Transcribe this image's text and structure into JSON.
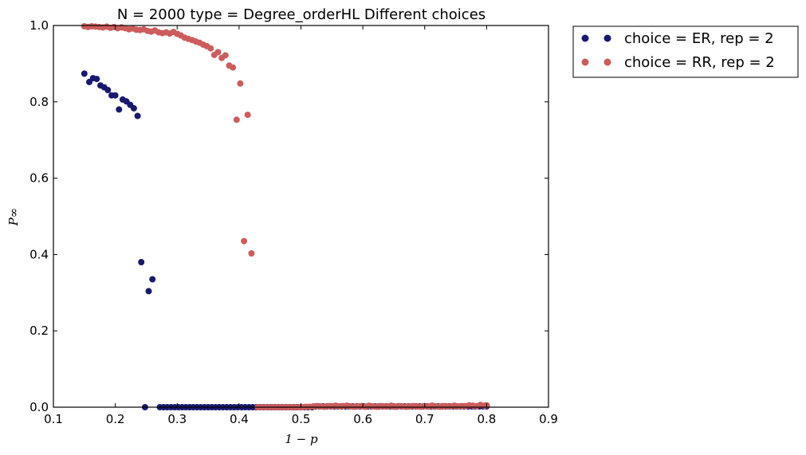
{
  "chart_data": {
    "type": "scatter",
    "title": "N = 2000 type = Degree_orderHL Different choices",
    "xlabel": "1 − p",
    "ylabel": "P∞",
    "xlim": [
      0.1,
      0.9
    ],
    "ylim": [
      0.0,
      1.0
    ],
    "xticks": [
      "0.1",
      "0.2",
      "0.3",
      "0.4",
      "0.5",
      "0.6",
      "0.7",
      "0.8",
      "0.9"
    ],
    "yticks": [
      "0.0",
      "0.2",
      "0.4",
      "0.6",
      "0.8",
      "1.0"
    ],
    "grid": false,
    "legend_position": "outside-top-right",
    "series": [
      {
        "name": "choice = ER, rep = 2",
        "color": "#191970",
        "points": [
          [
            0.15,
            0.874
          ],
          [
            0.158,
            0.852
          ],
          [
            0.164,
            0.862
          ],
          [
            0.17,
            0.86
          ],
          [
            0.176,
            0.843
          ],
          [
            0.182,
            0.838
          ],
          [
            0.188,
            0.831
          ],
          [
            0.194,
            0.817
          ],
          [
            0.2,
            0.817
          ],
          [
            0.206,
            0.78
          ],
          [
            0.212,
            0.806
          ],
          [
            0.218,
            0.801
          ],
          [
            0.224,
            0.792
          ],
          [
            0.23,
            0.783
          ],
          [
            0.236,
            0.763
          ],
          [
            0.242,
            0.38
          ],
          [
            0.248,
            0.0
          ],
          [
            0.254,
            0.304
          ],
          [
            0.26,
            0.335
          ],
          [
            0.272,
            0.0
          ],
          [
            0.278,
            0.0
          ],
          [
            0.284,
            0.0
          ],
          [
            0.29,
            0.0
          ],
          [
            0.296,
            0.0
          ],
          [
            0.302,
            0.0
          ],
          [
            0.308,
            0.0
          ],
          [
            0.314,
            0.0
          ],
          [
            0.32,
            0.0
          ],
          [
            0.326,
            0.0
          ],
          [
            0.332,
            0.0
          ],
          [
            0.338,
            0.0
          ],
          [
            0.344,
            0.0
          ],
          [
            0.35,
            0.0
          ],
          [
            0.356,
            0.0
          ],
          [
            0.362,
            0.0
          ],
          [
            0.368,
            0.0
          ],
          [
            0.374,
            0.0
          ],
          [
            0.38,
            0.0
          ],
          [
            0.386,
            0.0
          ],
          [
            0.392,
            0.0
          ],
          [
            0.398,
            0.0
          ],
          [
            0.404,
            0.0
          ],
          [
            0.41,
            0.0
          ],
          [
            0.416,
            0.0
          ],
          [
            0.422,
            0.0
          ],
          [
            0.428,
            0.0
          ],
          [
            0.434,
            0.0
          ],
          [
            0.44,
            0.0
          ],
          [
            0.446,
            0.0
          ],
          [
            0.452,
            0.0
          ],
          [
            0.458,
            0.0
          ],
          [
            0.464,
            0.0
          ],
          [
            0.47,
            0.0
          ],
          [
            0.476,
            0.0
          ],
          [
            0.482,
            0.0
          ],
          [
            0.488,
            0.0
          ],
          [
            0.494,
            0.0
          ],
          [
            0.5,
            0.0
          ],
          [
            0.506,
            0.0
          ],
          [
            0.512,
            0.0
          ],
          [
            0.518,
            0.0
          ],
          [
            0.524,
            0.002
          ],
          [
            0.53,
            0.002
          ],
          [
            0.536,
            0.002
          ],
          [
            0.542,
            0.002
          ],
          [
            0.548,
            0.002
          ],
          [
            0.554,
            0.002
          ],
          [
            0.56,
            0.002
          ],
          [
            0.566,
            0.002
          ],
          [
            0.572,
            0.002
          ],
          [
            0.578,
            0.002
          ],
          [
            0.584,
            0.002
          ],
          [
            0.59,
            0.002
          ],
          [
            0.596,
            0.002
          ],
          [
            0.602,
            0.002
          ],
          [
            0.608,
            0.002
          ],
          [
            0.614,
            0.002
          ],
          [
            0.62,
            0.002
          ],
          [
            0.626,
            0.002
          ],
          [
            0.632,
            0.002
          ],
          [
            0.638,
            0.002
          ],
          [
            0.644,
            0.002
          ],
          [
            0.65,
            0.002
          ],
          [
            0.656,
            0.002
          ],
          [
            0.662,
            0.002
          ],
          [
            0.668,
            0.002
          ],
          [
            0.674,
            0.002
          ],
          [
            0.68,
            0.002
          ],
          [
            0.686,
            0.002
          ],
          [
            0.692,
            0.002
          ],
          [
            0.698,
            0.002
          ],
          [
            0.704,
            0.002
          ],
          [
            0.71,
            0.002
          ],
          [
            0.716,
            0.002
          ],
          [
            0.722,
            0.002
          ],
          [
            0.728,
            0.002
          ],
          [
            0.734,
            0.002
          ],
          [
            0.74,
            0.002
          ],
          [
            0.746,
            0.002
          ],
          [
            0.752,
            0.002
          ],
          [
            0.758,
            0.002
          ],
          [
            0.764,
            0.002
          ],
          [
            0.77,
            0.002
          ],
          [
            0.776,
            0.002
          ],
          [
            0.782,
            0.002
          ],
          [
            0.788,
            0.002
          ],
          [
            0.794,
            0.002
          ],
          [
            0.8,
            0.002
          ]
        ]
      },
      {
        "name": "choice = RR, rep = 2",
        "color": "#cd5c5c",
        "points": [
          [
            0.15,
            0.998
          ],
          [
            0.156,
            0.996
          ],
          [
            0.162,
            0.998
          ],
          [
            0.168,
            0.997
          ],
          [
            0.174,
            0.996
          ],
          [
            0.18,
            0.995
          ],
          [
            0.186,
            0.997
          ],
          [
            0.192,
            0.994
          ],
          [
            0.198,
            0.996
          ],
          [
            0.204,
            0.993
          ],
          [
            0.21,
            0.995
          ],
          [
            0.216,
            0.993
          ],
          [
            0.222,
            0.99
          ],
          [
            0.228,
            0.992
          ],
          [
            0.234,
            0.989
          ],
          [
            0.24,
            0.988
          ],
          [
            0.246,
            0.99
          ],
          [
            0.252,
            0.986
          ],
          [
            0.258,
            0.984
          ],
          [
            0.264,
            0.987
          ],
          [
            0.27,
            0.982
          ],
          [
            0.276,
            0.98
          ],
          [
            0.282,
            0.982
          ],
          [
            0.288,
            0.979
          ],
          [
            0.294,
            0.983
          ],
          [
            0.3,
            0.978
          ],
          [
            0.306,
            0.974
          ],
          [
            0.312,
            0.968
          ],
          [
            0.318,
            0.965
          ],
          [
            0.324,
            0.962
          ],
          [
            0.33,
            0.958
          ],
          [
            0.336,
            0.955
          ],
          [
            0.342,
            0.95
          ],
          [
            0.348,
            0.946
          ],
          [
            0.354,
            0.94
          ],
          [
            0.36,
            0.923
          ],
          [
            0.366,
            0.93
          ],
          [
            0.372,
            0.915
          ],
          [
            0.378,
            0.922
          ],
          [
            0.384,
            0.895
          ],
          [
            0.39,
            0.89
          ],
          [
            0.396,
            0.753
          ],
          [
            0.402,
            0.848
          ],
          [
            0.408,
            0.435
          ],
          [
            0.414,
            0.766
          ],
          [
            0.42,
            0.403
          ],
          [
            0.43,
            0.0
          ],
          [
            0.436,
            0.0
          ],
          [
            0.442,
            0.0
          ],
          [
            0.448,
            0.0
          ],
          [
            0.454,
            0.0
          ],
          [
            0.46,
            0.0
          ],
          [
            0.466,
            0.0
          ],
          [
            0.472,
            0.0
          ],
          [
            0.478,
            0.0
          ],
          [
            0.484,
            0.0
          ],
          [
            0.49,
            0.0
          ],
          [
            0.496,
            0.0
          ],
          [
            0.502,
            0.0
          ],
          [
            0.508,
            0.001
          ],
          [
            0.514,
            0.001
          ],
          [
            0.52,
            0.002
          ],
          [
            0.526,
            0.003
          ],
          [
            0.532,
            0.002
          ],
          [
            0.538,
            0.001
          ],
          [
            0.544,
            0.003
          ],
          [
            0.55,
            0.002
          ],
          [
            0.556,
            0.004
          ],
          [
            0.562,
            0.002
          ],
          [
            0.568,
            0.003
          ],
          [
            0.574,
            0.004
          ],
          [
            0.58,
            0.002
          ],
          [
            0.586,
            0.001
          ],
          [
            0.592,
            0.002
          ],
          [
            0.598,
            0.003
          ],
          [
            0.604,
            0.001
          ],
          [
            0.61,
            0.004
          ],
          [
            0.616,
            0.002
          ],
          [
            0.622,
            0.001
          ],
          [
            0.628,
            0.003
          ],
          [
            0.634,
            0.002
          ],
          [
            0.64,
            0.002
          ],
          [
            0.646,
            0.004
          ],
          [
            0.652,
            0.001
          ],
          [
            0.658,
            0.003
          ],
          [
            0.664,
            0.002
          ],
          [
            0.67,
            0.001
          ],
          [
            0.676,
            0.002
          ],
          [
            0.682,
            0.003
          ],
          [
            0.688,
            0.002
          ],
          [
            0.694,
            0.001
          ],
          [
            0.7,
            0.003
          ],
          [
            0.706,
            0.002
          ],
          [
            0.712,
            0.004
          ],
          [
            0.718,
            0.002
          ],
          [
            0.724,
            0.001
          ],
          [
            0.73,
            0.003
          ],
          [
            0.736,
            0.002
          ],
          [
            0.742,
            0.002
          ],
          [
            0.748,
            0.004
          ],
          [
            0.754,
            0.002
          ],
          [
            0.76,
            0.003
          ],
          [
            0.766,
            0.003
          ],
          [
            0.772,
            0.005
          ],
          [
            0.778,
            0.004
          ],
          [
            0.784,
            0.003
          ],
          [
            0.79,
            0.006
          ],
          [
            0.796,
            0.004
          ],
          [
            0.8,
            0.005
          ]
        ]
      }
    ]
  }
}
